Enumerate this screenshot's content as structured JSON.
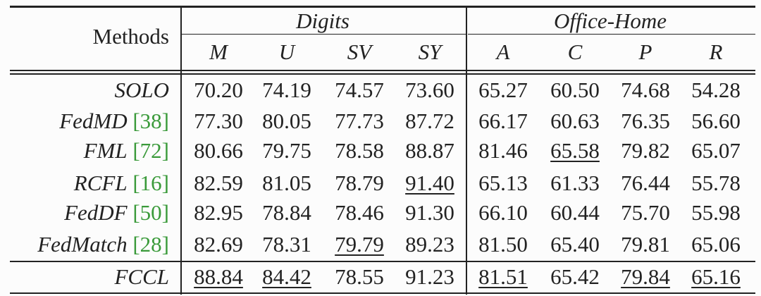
{
  "table": {
    "header": {
      "methods": "Methods",
      "groups": [
        "Digits",
        "Office-Home"
      ],
      "columns": [
        "M",
        "U",
        "SV",
        "SY",
        "A",
        "C",
        "P",
        "R"
      ]
    },
    "rows": [
      {
        "method": "SOLO",
        "cells": [
          "70.20",
          "74.19",
          "74.57",
          "73.60",
          "65.27",
          "60.50",
          "74.68",
          "54.28"
        ],
        "underlined": []
      },
      {
        "method": "FedMD",
        "ref": "[38]",
        "cells": [
          "77.30",
          "80.05",
          "77.73",
          "87.72",
          "66.17",
          "60.63",
          "76.35",
          "56.60"
        ],
        "underlined": []
      },
      {
        "method": "FML",
        "ref": "[72]",
        "cells": [
          "80.66",
          "79.75",
          "78.58",
          "88.87",
          "81.46",
          "65.58",
          "79.82",
          "65.07"
        ],
        "underlined": [
          5
        ]
      },
      {
        "method": "RCFL",
        "ref": "[16]",
        "cells": [
          "82.59",
          "81.05",
          "78.79",
          "91.40",
          "65.13",
          "61.33",
          "76.44",
          "55.78"
        ],
        "underlined": [
          3
        ]
      },
      {
        "method": "FedDF",
        "ref": "[50]",
        "cells": [
          "82.95",
          "78.84",
          "78.46",
          "91.30",
          "66.10",
          "60.44",
          "75.70",
          "55.98"
        ],
        "underlined": []
      },
      {
        "method": "FedMatch",
        "ref": "[28]",
        "cells": [
          "82.69",
          "78.31",
          "79.79",
          "89.23",
          "81.50",
          "65.40",
          "79.81",
          "65.06"
        ],
        "underlined": [
          2
        ]
      },
      {
        "method": "FCCL",
        "cells": [
          "88.84",
          "84.42",
          "78.55",
          "91.23",
          "81.51",
          "65.42",
          "79.84",
          "65.16"
        ],
        "underlined": [
          0,
          1,
          4,
          6,
          7
        ]
      }
    ]
  }
}
